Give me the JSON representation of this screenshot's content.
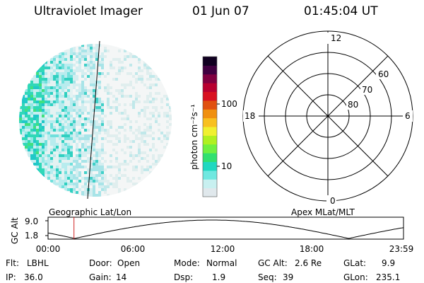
{
  "header": {
    "title": "Ultraviolet Imager",
    "date": "01 Jun 07",
    "time": "01:45:04 UT"
  },
  "colorbar": {
    "unit_label": "photon cm⁻²s⁻¹",
    "ticks": [
      {
        "value": 100,
        "label": "100"
      },
      {
        "value": 10,
        "label": "10"
      }
    ],
    "scale": "log",
    "colors": [
      "#e0e8ec",
      "#c8f0f0",
      "#70e8e0",
      "#20d8c0",
      "#30e070",
      "#70f040",
      "#b0f020",
      "#f0f030",
      "#f8c020",
      "#f09010",
      "#e05010",
      "#d81020",
      "#b80030",
      "#800040",
      "#400040",
      "#100020"
    ]
  },
  "polar_plot": {
    "clock_labels": {
      "top": "12",
      "left": "18",
      "right": "6",
      "bottom": "0"
    },
    "lat_rings": [
      {
        "label": "80",
        "value": 80
      },
      {
        "label": "70",
        "value": 70
      },
      {
        "label": "60",
        "value": 60
      }
    ]
  },
  "timeline": {
    "left_label": "Geographic Lat/Lon",
    "right_label": "Apex MLat/MLT",
    "axis_label": "GC Alt",
    "y_ticks": [
      "9.0",
      "1.8"
    ],
    "x_ticks": [
      "00:00",
      "06:00",
      "12:00",
      "18:00",
      "23:59"
    ],
    "current_time_hours": 1.75,
    "marker_color": "#d02020"
  },
  "footer": {
    "row1": [
      {
        "key": "Flt:",
        "value": "LBHL"
      },
      {
        "key": "Door:",
        "value": "Open"
      },
      {
        "key": "Mode:",
        "value": "Normal"
      },
      {
        "key": "GC Alt:",
        "value": "2.6 Re"
      },
      {
        "key": "GLat:",
        "value": "9.9"
      }
    ],
    "row2": [
      {
        "key": "IP:",
        "value": "36.0"
      },
      {
        "key": "Gain:",
        "value": "14"
      },
      {
        "key": "Dsp:",
        "value": "1.9"
      },
      {
        "key": "Seq:",
        "value": "39"
      },
      {
        "key": "GLon:",
        "value": "235.1"
      }
    ]
  }
}
